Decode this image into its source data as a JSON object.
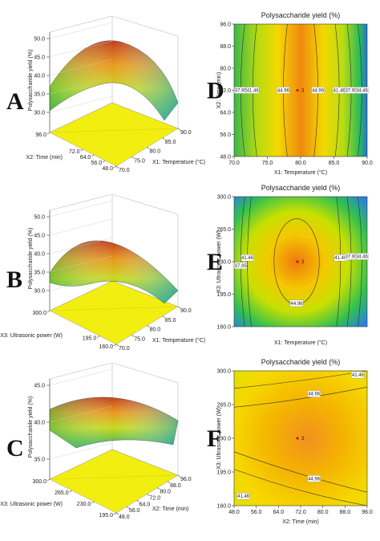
{
  "chart_data": [
    {
      "type": "surface3d",
      "panel_label": "A",
      "z_label": "Polysaccharide yield (%)",
      "x_label": "X1: Temperature (°C)",
      "y_label": "X2: Time (min)",
      "zlim": [
        30,
        50
      ],
      "zticks": [
        {
          "value": 30,
          "label": "30.0"
        },
        {
          "value": 35,
          "label": "35.0"
        },
        {
          "value": 40,
          "label": "40.0"
        },
        {
          "value": 45,
          "label": "45.0"
        },
        {
          "value": 50,
          "label": "50.0"
        }
      ],
      "xlim": [
        70,
        90
      ],
      "xticks": [
        {
          "value": 70,
          "label": "70.0"
        },
        {
          "value": 75,
          "label": "75.0"
        },
        {
          "value": 80,
          "label": "80.0"
        },
        {
          "value": 85,
          "label": "85.0"
        },
        {
          "value": 90,
          "label": "90.0"
        }
      ],
      "ylim": [
        48,
        96
      ],
      "yticks": [
        {
          "value": 48,
          "label": "48.0"
        },
        {
          "value": 56,
          "label": "56.0"
        },
        {
          "value": 64,
          "label": "64.0"
        },
        {
          "value": 72,
          "label": "72.0"
        },
        {
          "value": 96,
          "label": "96.0"
        }
      ]
    },
    {
      "type": "surface3d",
      "panel_label": "B",
      "z_label": "Polysaccharide yield (%)",
      "x_label": "X1: Temperature (°C)",
      "y_label": "X3: Ultrasonic power (W)",
      "zlim": [
        30,
        50
      ],
      "zticks": [
        {
          "value": 30,
          "label": "30.0"
        },
        {
          "value": 35,
          "label": "35.0"
        },
        {
          "value": 40,
          "label": "40.0"
        },
        {
          "value": 45,
          "label": "45.0"
        },
        {
          "value": 50,
          "label": "50.0"
        }
      ],
      "xlim": [
        70,
        90
      ],
      "xticks": [
        {
          "value": 70,
          "label": "70.0"
        },
        {
          "value": 75,
          "label": "75.0"
        },
        {
          "value": 80,
          "label": "80.0"
        },
        {
          "value": 85,
          "label": "85.0"
        },
        {
          "value": 90,
          "label": "90.0"
        }
      ],
      "ylim": [
        160,
        300
      ],
      "yticks": [
        {
          "value": 160,
          "label": "160.0"
        },
        {
          "value": 195,
          "label": "195.0"
        },
        {
          "value": 300,
          "label": "300.0"
        }
      ]
    },
    {
      "type": "surface3d",
      "panel_label": "C",
      "z_label": "Polysaccharide yield (%)",
      "x_label": "X2: Time (min)",
      "y_label": "X3: Ultrasonic power (W)",
      "zlim": [
        35,
        45
      ],
      "zticks": [
        {
          "value": 35,
          "label": "35.0"
        },
        {
          "value": 40,
          "label": "40.0"
        },
        {
          "value": 45,
          "label": "45.0"
        }
      ],
      "xlim": [
        48,
        96
      ],
      "xticks": [
        {
          "value": 48,
          "label": "48.0"
        },
        {
          "value": 56,
          "label": "56.0"
        },
        {
          "value": 64,
          "label": "64.0"
        },
        {
          "value": 72,
          "label": "72.0"
        },
        {
          "value": 80,
          "label": "80.0"
        },
        {
          "value": 88,
          "label": "88.0"
        },
        {
          "value": 96,
          "label": "96.0"
        }
      ],
      "ylim": [
        195,
        300
      ],
      "yticks": [
        {
          "value": 195,
          "label": "195.0"
        },
        {
          "value": 230,
          "label": "230.0"
        },
        {
          "value": 265,
          "label": "265.0"
        },
        {
          "value": 300,
          "label": "300.0"
        }
      ]
    },
    {
      "type": "contour",
      "panel_label": "D",
      "title": "Polysaccharide yield (%)",
      "x_label": "X1: Temperature (°C)",
      "y_label": "X2: Time (min)",
      "xlim": [
        70,
        90
      ],
      "xticks": [
        {
          "value": 70,
          "label": "70.0"
        },
        {
          "value": 75,
          "label": "75.0"
        },
        {
          "value": 80,
          "label": "80.0"
        },
        {
          "value": 85,
          "label": "85.0"
        },
        {
          "value": 90,
          "label": "90.0"
        }
      ],
      "ylim": [
        48,
        96
      ],
      "yticks": [
        {
          "value": 48,
          "label": "48.0"
        },
        {
          "value": 56,
          "label": "56.0"
        },
        {
          "value": 64,
          "label": "64.0"
        },
        {
          "value": 72,
          "label": "72.0"
        },
        {
          "value": 80,
          "label": "80.0"
        },
        {
          "value": 88,
          "label": "88.0"
        },
        {
          "value": 96,
          "label": "96.0"
        }
      ],
      "contour_labels": [
        37.95,
        41.46,
        44.96,
        44.96,
        41.46,
        37.95,
        34.46
      ],
      "center_points": 3
    },
    {
      "type": "contour",
      "panel_label": "E",
      "title": "Polysaccharide yield (%)",
      "x_label": "X1: Temperature (°C)",
      "y_label": "X3: Ultrasonic power (W)",
      "xlim": [
        70,
        90
      ],
      "ylim": [
        160,
        300
      ],
      "yticks": [
        {
          "value": 160,
          "label": "160.0"
        },
        {
          "value": 195,
          "label": "195.0"
        },
        {
          "value": 230,
          "label": "230.0"
        },
        {
          "value": 265,
          "label": "265.0"
        },
        {
          "value": 300,
          "label": "300.0"
        }
      ],
      "contour_labels": [
        37.95,
        41.46,
        44.96,
        41.46,
        37.95,
        34.46
      ],
      "center_points": 3
    },
    {
      "type": "contour",
      "panel_label": "F",
      "title": "Polysaccharide yield (%)",
      "x_label": "X2: Time (min)",
      "y_label": "X3: Ultrasonic power (W)",
      "xlim": [
        48,
        96
      ],
      "xticks": [
        {
          "value": 48,
          "label": "48.0"
        },
        {
          "value": 56,
          "label": "56.0"
        },
        {
          "value": 64,
          "label": "64.0"
        },
        {
          "value": 72,
          "label": "72.0"
        },
        {
          "value": 80,
          "label": "80.0"
        },
        {
          "value": 88,
          "label": "88.0"
        },
        {
          "value": 96,
          "label": "96.0"
        }
      ],
      "ylim": [
        160,
        300
      ],
      "yticks": [
        {
          "value": 160,
          "label": "160.0"
        },
        {
          "value": 195,
          "label": "195.0"
        },
        {
          "value": 230,
          "label": "230.0"
        },
        {
          "value": 265,
          "label": "265.0"
        },
        {
          "value": 300,
          "label": "300.0"
        }
      ],
      "contour_labels": [
        41.46,
        44.96,
        44.96,
        41.46
      ],
      "center_points": 3
    }
  ]
}
